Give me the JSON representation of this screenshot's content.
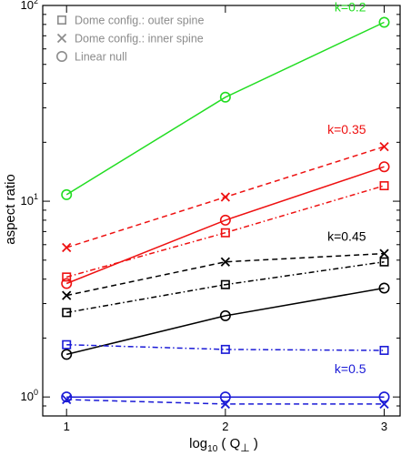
{
  "chart_data": {
    "type": "line",
    "xlabel_main": "log",
    "xlabel_sub": "10",
    "xlabel_rest": " ( Q",
    "xlabel_perp": "⊥",
    "xlabel_close": " )",
    "ylabel": "aspect ratio",
    "yscale": "log",
    "xlim": [
      0.85,
      3.1
    ],
    "ylim": [
      0.8,
      100
    ],
    "x": [
      1,
      2,
      3
    ],
    "x_tick_labels": [
      "1",
      "2",
      "3"
    ],
    "y_tick_labels": [
      {
        "value": 1,
        "base": "10",
        "exp": "0"
      },
      {
        "value": 10,
        "base": "10",
        "exp": "1"
      },
      {
        "value": 100,
        "base": "10",
        "exp": "2"
      }
    ],
    "legend": [
      {
        "marker": "square",
        "label": "Dome config.: outer spine"
      },
      {
        "marker": "cross",
        "label": "Dome config.: inner spine"
      },
      {
        "marker": "circle",
        "label": "Linear null"
      }
    ],
    "legend_position": "top-left",
    "groups": [
      {
        "label": "k=0.2",
        "color": "#22dd22"
      },
      {
        "label": "k=0.35",
        "color": "#ee1111"
      },
      {
        "label": "k=0.45",
        "color": "#000000"
      },
      {
        "label": "k=0.5",
        "color": "#1a1ad6"
      }
    ],
    "series": [
      {
        "group": 0,
        "marker": "circle",
        "line": "solid",
        "values": [
          10.8,
          34,
          82
        ]
      },
      {
        "group": 1,
        "marker": "cross",
        "line": "dashed",
        "values": [
          5.8,
          10.5,
          19
        ]
      },
      {
        "group": 1,
        "marker": "circle",
        "line": "solid",
        "values": [
          3.8,
          8.0,
          15
        ]
      },
      {
        "group": 1,
        "marker": "square",
        "line": "dashdot",
        "values": [
          4.1,
          6.9,
          12
        ]
      },
      {
        "group": 2,
        "marker": "cross",
        "line": "dashed",
        "values": [
          3.3,
          4.9,
          5.4
        ]
      },
      {
        "group": 2,
        "marker": "square",
        "line": "dashdot",
        "values": [
          2.7,
          3.75,
          4.9
        ]
      },
      {
        "group": 2,
        "marker": "circle",
        "line": "solid",
        "values": [
          1.65,
          2.6,
          3.6
        ]
      },
      {
        "group": 3,
        "marker": "square",
        "line": "dashdot",
        "values": [
          1.85,
          1.75,
          1.73
        ]
      },
      {
        "group": 3,
        "marker": "circle",
        "line": "solid",
        "values": [
          1.0,
          1.0,
          1.0
        ]
      },
      {
        "group": 3,
        "marker": "cross",
        "line": "dashed",
        "values": [
          0.97,
          0.92,
          0.92
        ]
      }
    ]
  }
}
